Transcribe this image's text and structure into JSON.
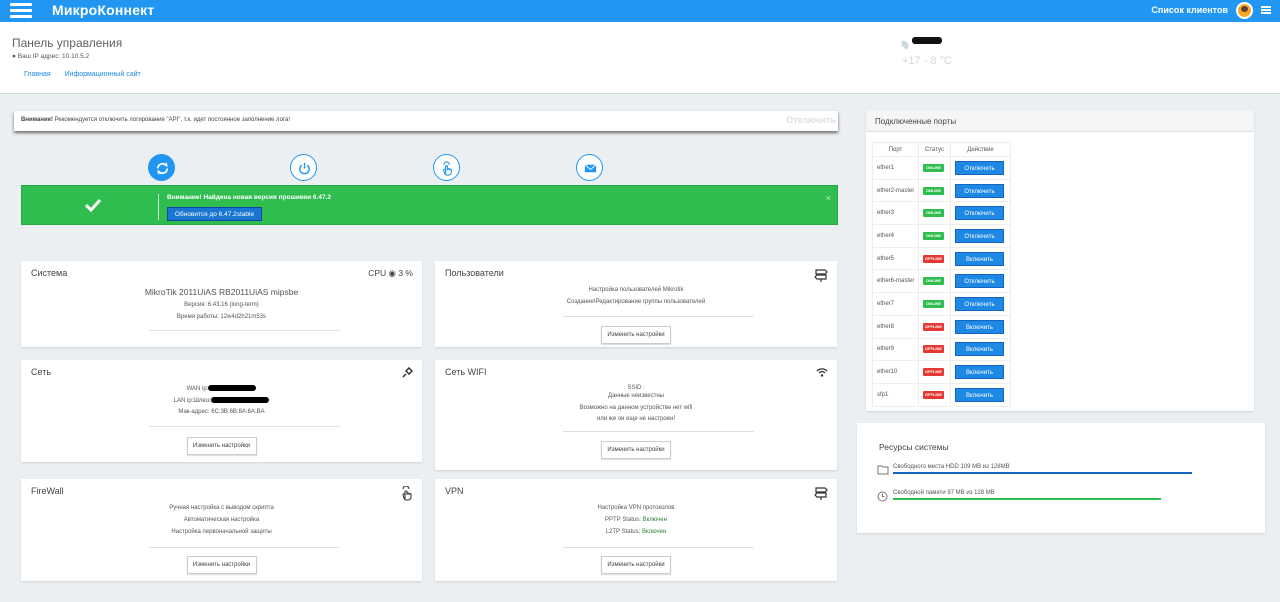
{
  "topbar": {
    "brand": "МикроКоннект",
    "clients_link": "Список клиентов",
    "color": "#2196f3"
  },
  "header": {
    "title": "Панель управления",
    "ip_label": "Ваш IP адрес: 10.10.5.2",
    "breadcrumbs": [
      "Главная",
      "Информационный сайт"
    ],
    "weather_temp": "+17 - 8 °С"
  },
  "warning": {
    "prefix": "Внимание!",
    "text": " Рекомендуется отключить логирование \"API\", т.к. идет постоянное заполнение лога!",
    "button": "Отключить"
  },
  "actions": [
    "refresh-icon",
    "power-icon",
    "touch-icon",
    "mail-icon"
  ],
  "update_alert": {
    "prefix": "Внимание!",
    "text": " Найдена новая версия прошивки 6.47.2",
    "button": "Обновится до 6.47.2stable",
    "close": "×",
    "color": "#2ebd4e"
  },
  "system": {
    "title": "Система",
    "cpu": "CPU",
    "cpu_value": "3 %",
    "model": "MikroTik 2011UiAS RB2011UiAS mipsbe",
    "version": "Версия: 6.43.16 (long-term)",
    "uptime": "Время работы: 12w4d2h21m53s"
  },
  "users": {
    "title": "Пользователи",
    "line1": "Настройка пользователей Mikrotik",
    "line2": "Создание\\Редактирование группы пользователей",
    "button": "Изменить настройки"
  },
  "network": {
    "title": "Сеть",
    "wan": "WAN ip:",
    "lan": "LAN ip:Шлюз:",
    "mac": "Мак-адрес: 6C:3B:6B:8A:6A:BA",
    "button": "Изменить настройки"
  },
  "wifi": {
    "title": "Сеть WIFI",
    "ssid": "SSID :",
    "line1": "Данные неизвестны",
    "line2": "Возможно на данном устройстве нет wifi",
    "line3": "или же он еще не настроен!",
    "button": "Изменить настройки"
  },
  "firewall": {
    "title": "FireWall",
    "line1": "Ручная настройка с выводом скрипта",
    "line2": "Автоматическая настройка",
    "line3": "Настройка первоначальной защиты",
    "button": "Изменить настройки"
  },
  "vpn": {
    "title": "VPN",
    "line1": "Настройка VPN протоколов",
    "pptp_label": "PPTP Status:",
    "pptp_value": "Включен",
    "l2tp_label": "L2TP Status:",
    "l2tp_value": "Включен",
    "button": "Изменить настройки"
  },
  "ports": {
    "title": "Подключенные порты",
    "columns": [
      "Порт",
      "Статус",
      "Действие"
    ],
    "rows": [
      {
        "port": "ether1",
        "status": "ONLINE",
        "action": "Отключить"
      },
      {
        "port": "ether2-master",
        "status": "ONLINE",
        "action": "Отключить"
      },
      {
        "port": "ether3",
        "status": "ONLINE",
        "action": "Отключить"
      },
      {
        "port": "ether4",
        "status": "ONLINE",
        "action": "Отключить"
      },
      {
        "port": "ether5",
        "status": "OFFLINE",
        "action": "Включить"
      },
      {
        "port": "ether6-master",
        "status": "ONLINE",
        "action": "Отключить"
      },
      {
        "port": "ether7",
        "status": "ONLINE",
        "action": "Отключить"
      },
      {
        "port": "ether8",
        "status": "OFFLINE",
        "action": "Включить"
      },
      {
        "port": "ether9",
        "status": "OFFLINE",
        "action": "Включить"
      },
      {
        "port": "ether10",
        "status": "OFFLINE",
        "action": "Включить"
      },
      {
        "port": "sfp1",
        "status": "OFFLINE",
        "action": "Включить"
      }
    ]
  },
  "resources": {
    "title": "Ресурсы системы",
    "hdd": "Свободного места HDD 109 MB из 128MB",
    "hdd_fraction": 0.85,
    "hdd_color": "#1565c0",
    "ram": "Свободной памяти 97 MB из 128 MB",
    "ram_fraction": 0.76,
    "ram_color": "#2ebd4e"
  }
}
